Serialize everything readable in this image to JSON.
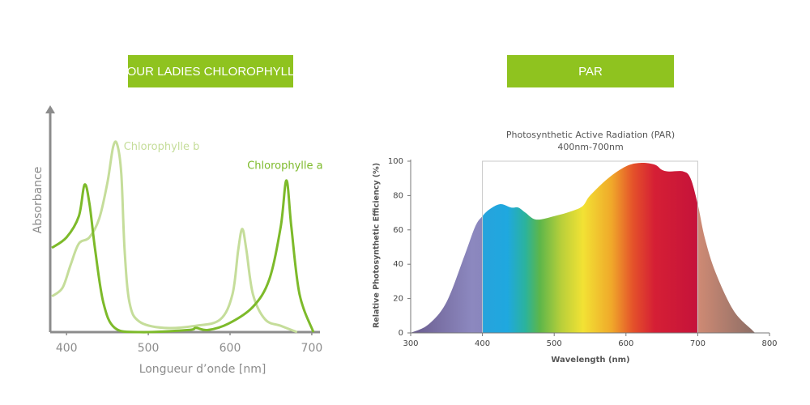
{
  "chart_data": [
    {
      "type": "line",
      "title": "OUR LADIES CHLOROPHYLL",
      "xlabel": "Longueur d’onde [nm]",
      "ylabel": "Absorbance",
      "xlim": [
        380,
        710
      ],
      "xticks": [
        400,
        500,
        600,
        700
      ],
      "ylim": [
        0,
        1
      ],
      "series": [
        {
          "name": "Chlorophylle a",
          "color": "#7dba2a",
          "x": [
            382,
            400,
            415,
            422,
            428,
            435,
            445,
            459,
            489,
            549,
            558,
            573,
            598,
            628,
            648,
            662,
            669,
            675,
            685,
            702
          ],
          "values": [
            0.4,
            0.45,
            0.55,
            0.7,
            0.61,
            0.39,
            0.14,
            0.02,
            0,
            0.01,
            0.02,
            0.01,
            0.04,
            0.12,
            0.25,
            0.5,
            0.72,
            0.5,
            0.18,
            0
          ]
        },
        {
          "name": "Chlorophylle b",
          "color": "#c5dd9a",
          "x": [
            382,
            395,
            405,
            415,
            428,
            440,
            450,
            457,
            462,
            467,
            471,
            477,
            489,
            519,
            558,
            588,
            603,
            610,
            615,
            620,
            628,
            643,
            662,
            682
          ],
          "values": [
            0.17,
            0.21,
            0.32,
            0.42,
            0.45,
            0.54,
            0.71,
            0.88,
            0.89,
            0.75,
            0.39,
            0.14,
            0.05,
            0.02,
            0.03,
            0.06,
            0.18,
            0.39,
            0.49,
            0.39,
            0.18,
            0.06,
            0.03,
            0
          ]
        }
      ]
    },
    {
      "type": "area",
      "title": "PAR",
      "subtitle": "Photosynthetic Active Radiation (PAR)",
      "subtitle2": "400nm-700nm",
      "xlabel": "Wavelength (nm)",
      "ylabel": "Relative Photosynthetic Efficiency (%)",
      "xlim": [
        300,
        800
      ],
      "xticks": [
        300,
        400,
        500,
        600,
        700,
        800
      ],
      "ylim": [
        0,
        100
      ],
      "yticks": [
        0,
        20,
        40,
        60,
        80,
        100
      ],
      "highlight": [
        400,
        700
      ],
      "x": [
        300,
        325,
        350,
        375,
        390,
        400,
        410,
        425,
        440,
        450,
        460,
        475,
        500,
        525,
        540,
        550,
        575,
        600,
        620,
        640,
        650,
        660,
        680,
        690,
        700,
        710,
        725,
        750,
        775,
        780
      ],
      "values": [
        0,
        5,
        18,
        45,
        62,
        68,
        72,
        75,
        73,
        73,
        70,
        66,
        68,
        71,
        74,
        80,
        90,
        97,
        99,
        98,
        95,
        94,
        94,
        90,
        75,
        55,
        35,
        13,
        2,
        0
      ]
    }
  ]
}
